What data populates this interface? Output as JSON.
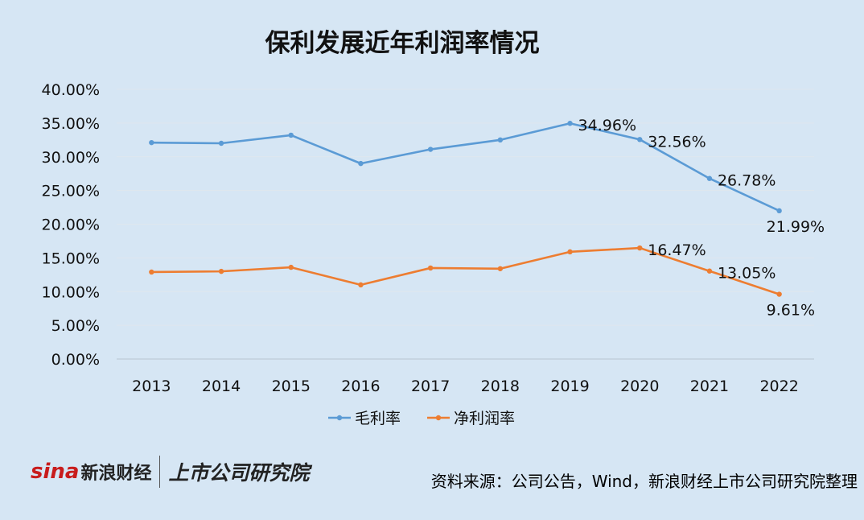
{
  "chart_data": {
    "type": "line",
    "title": "保利发展近年利润率情况",
    "categories": [
      "2013",
      "2014",
      "2015",
      "2016",
      "2017",
      "2018",
      "2019",
      "2020",
      "2021",
      "2022"
    ],
    "series": [
      {
        "name": "毛利率",
        "color": "#5b9bd5",
        "values": [
          32.1,
          32.0,
          33.2,
          29.0,
          31.1,
          32.5,
          34.96,
          32.56,
          26.78,
          21.99
        ],
        "labels": [
          "",
          "",
          "",
          "",
          "",
          "",
          "34.96%",
          "32.56%",
          "26.78%",
          "21.99%"
        ]
      },
      {
        "name": "净利润率",
        "color": "#ed7d31",
        "values": [
          12.9,
          13.0,
          13.6,
          11.0,
          13.5,
          13.4,
          15.9,
          16.47,
          13.05,
          9.61
        ],
        "labels": [
          "",
          "",
          "",
          "",
          "",
          "",
          "",
          "16.47%",
          "13.05%",
          "9.61%"
        ]
      }
    ],
    "y_ticks": [
      "0.00%",
      "5.00%",
      "10.00%",
      "15.00%",
      "20.00%",
      "25.00%",
      "30.00%",
      "35.00%",
      "40.00%"
    ],
    "ylim": [
      0,
      40
    ],
    "grid": true,
    "legend": "bottom"
  },
  "logo": {
    "sina": "sina",
    "brand": "新浪财经",
    "institute": "上市公司研究院"
  },
  "source": "资料来源：公司公告，Wind，新浪财经上市公司研究院整理"
}
